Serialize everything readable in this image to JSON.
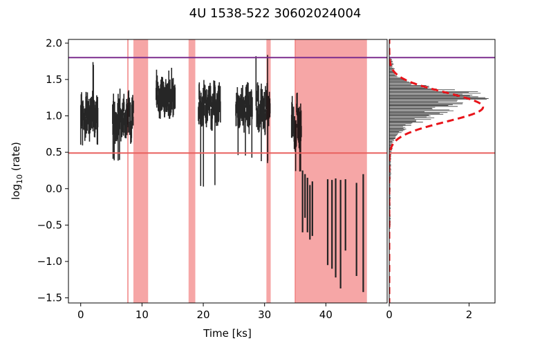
{
  "chart_data": [
    {
      "type": "line",
      "title": "4U 1538-522 30602024004",
      "xlabel": "Time [ks]",
      "ylabel_prefix": "log",
      "ylabel_sub": "10",
      "ylabel_suffix": " (rate)",
      "xlim": [
        -2,
        50
      ],
      "ylim": [
        -1.57,
        2.05
      ],
      "xticks": [
        0,
        10,
        20,
        30,
        40
      ],
      "yticks": [
        2.0,
        1.5,
        1.0,
        0.5,
        0.0,
        -0.5,
        -1.0,
        -1.5
      ],
      "ytick_labels": [
        "2.0",
        "1.5",
        "1.0",
        "0.5",
        "0.0",
        "−0.5",
        "−1.0",
        "−1.5"
      ],
      "grid": false,
      "colors": {
        "data": "#000000",
        "shade": "#f6a6a6",
        "vline": "#f08080",
        "threshold_low": "#e8615f",
        "threshold_high": "#7b2d8e",
        "fit": "#e8141a"
      },
      "thresholds": {
        "high": 1.8,
        "low": 0.49
      },
      "flagged_intervals_ks": [
        [
          8.6,
          11.0
        ],
        [
          17.6,
          18.7
        ],
        [
          30.3,
          31.0
        ],
        [
          35.0,
          46.7
        ]
      ],
      "vertical_lines_ks": [
        7.7,
        35.0
      ],
      "segments": [
        {
          "x": [
            0.0,
            2.8
          ],
          "center": 1.0,
          "amplitude": 0.18,
          "min": 0.57,
          "max": 1.74,
          "density": 3
        },
        {
          "x": [
            5.2,
            8.6
          ],
          "center": 0.95,
          "amplitude": 0.18,
          "min": 0.37,
          "max": 1.38,
          "density": 3
        },
        {
          "x": [
            12.3,
            15.4
          ],
          "center": 1.25,
          "amplitude": 0.16,
          "min": 0.96,
          "max": 1.67,
          "density": 3
        },
        {
          "x": [
            19.2,
            22.8
          ],
          "center": 1.15,
          "amplitude": 0.16,
          "min": 0.0,
          "max": 1.6,
          "density": 3
        },
        {
          "x": [
            25.3,
            28.0
          ],
          "center": 1.1,
          "amplitude": 0.15,
          "min": 0.42,
          "max": 1.5,
          "density": 3
        },
        {
          "x": [
            28.6,
            30.9
          ],
          "center": 1.1,
          "amplitude": 0.2,
          "min": 0.34,
          "max": 1.85,
          "density": 3
        },
        {
          "x": [
            34.4,
            36.0
          ],
          "center": 0.9,
          "amplitude": 0.2,
          "min": 0.2,
          "max": 1.35,
          "density": 3
        }
      ],
      "low_bins": [
        {
          "x": 36.2,
          "low": -0.6,
          "high": 0.25
        },
        {
          "x": 36.6,
          "low": -0.4,
          "high": 0.2
        },
        {
          "x": 37.0,
          "low": -0.6,
          "high": 0.15
        },
        {
          "x": 37.4,
          "low": -0.7,
          "high": 0.05
        },
        {
          "x": 37.8,
          "low": -0.65,
          "high": 0.1
        },
        {
          "x": 40.3,
          "low": -1.05,
          "high": 0.13
        },
        {
          "x": 41.0,
          "low": -1.1,
          "high": 0.12
        },
        {
          "x": 41.6,
          "low": -1.22,
          "high": 0.14
        },
        {
          "x": 42.4,
          "low": -1.37,
          "high": 0.12
        },
        {
          "x": 43.2,
          "low": -0.85,
          "high": 0.13
        },
        {
          "x": 45.0,
          "low": -1.2,
          "high": 0.08
        },
        {
          "x": 46.1,
          "low": -1.42,
          "high": 0.2
        }
      ]
    },
    {
      "type": "histogram",
      "xlim": [
        0,
        2.65
      ],
      "ylim": [
        -1.57,
        2.05
      ],
      "xticks": [
        0,
        2
      ],
      "orientation": "horizontal",
      "bins": [
        {
          "y": 1.78,
          "count": 0.05
        },
        {
          "y": 1.72,
          "count": 0.08
        },
        {
          "y": 1.66,
          "count": 0.1
        },
        {
          "y": 1.6,
          "count": 0.15
        },
        {
          "y": 1.55,
          "count": 0.22
        },
        {
          "y": 1.5,
          "count": 0.35
        },
        {
          "y": 1.45,
          "count": 0.55
        },
        {
          "y": 1.4,
          "count": 0.9
        },
        {
          "y": 1.36,
          "count": 1.4
        },
        {
          "y": 1.32,
          "count": 2.05
        },
        {
          "y": 1.28,
          "count": 1.7
        },
        {
          "y": 1.24,
          "count": 1.95
        },
        {
          "y": 1.2,
          "count": 1.75
        },
        {
          "y": 1.16,
          "count": 1.55
        },
        {
          "y": 1.12,
          "count": 1.45
        },
        {
          "y": 1.08,
          "count": 1.3
        },
        {
          "y": 1.04,
          "count": 1.2
        },
        {
          "y": 1.0,
          "count": 1.0
        },
        {
          "y": 0.96,
          "count": 0.85
        },
        {
          "y": 0.92,
          "count": 0.7
        },
        {
          "y": 0.88,
          "count": 0.55
        },
        {
          "y": 0.84,
          "count": 0.4
        },
        {
          "y": 0.8,
          "count": 0.3
        },
        {
          "y": 0.75,
          "count": 0.22
        },
        {
          "y": 0.7,
          "count": 0.15
        },
        {
          "y": 0.65,
          "count": 0.1
        },
        {
          "y": 0.6,
          "count": 0.08
        },
        {
          "y": 0.5,
          "count": 0.05
        },
        {
          "y": 0.4,
          "count": 0.04
        },
        {
          "y": 0.3,
          "count": 0.04
        },
        {
          "y": 0.2,
          "count": 0.04
        },
        {
          "y": 0.1,
          "count": 0.03
        },
        {
          "y": 0.0,
          "count": 0.03
        },
        {
          "y": -0.1,
          "count": 0.03
        },
        {
          "y": -0.3,
          "count": 0.03
        },
        {
          "y": -0.5,
          "count": 0.03
        }
      ],
      "fit_curve": {
        "mean": 1.12,
        "sigma": 0.2,
        "peak": 2.35
      }
    }
  ]
}
